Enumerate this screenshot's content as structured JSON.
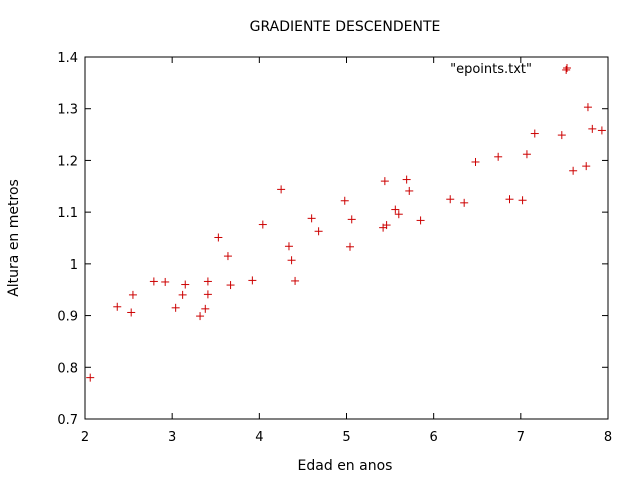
{
  "chart_data": {
    "type": "scatter",
    "title": "GRADIENTE DESCENDENTE",
    "xlabel": "Edad en anos",
    "ylabel": "Altura en metros",
    "xlim": [
      2,
      8
    ],
    "ylim": [
      0.7,
      1.4
    ],
    "xticks": [
      "2",
      "3",
      "4",
      "5",
      "6",
      "7",
      "8"
    ],
    "yticks": [
      "0.7",
      "0.8",
      "0.9",
      "1",
      "1.1",
      "1.2",
      "1.3",
      "1.4"
    ],
    "grid": false,
    "legend_position": "top-right",
    "series": [
      {
        "name": "\"epoints.txt\"",
        "color": "#cc0000",
        "marker": "plus",
        "points": [
          [
            2.06,
            0.78
          ],
          [
            2.37,
            0.917
          ],
          [
            2.53,
            0.906
          ],
          [
            2.55,
            0.94
          ],
          [
            2.79,
            0.966
          ],
          [
            2.92,
            0.965
          ],
          [
            3.04,
            0.915
          ],
          [
            3.12,
            0.94
          ],
          [
            3.15,
            0.96
          ],
          [
            3.32,
            0.899
          ],
          [
            3.38,
            0.913
          ],
          [
            3.41,
            0.941
          ],
          [
            3.41,
            0.966
          ],
          [
            3.53,
            1.051
          ],
          [
            3.64,
            1.015
          ],
          [
            3.67,
            0.959
          ],
          [
            3.92,
            0.968
          ],
          [
            4.04,
            1.076
          ],
          [
            4.25,
            1.144
          ],
          [
            4.34,
            1.034
          ],
          [
            4.37,
            1.007
          ],
          [
            4.41,
            0.967
          ],
          [
            4.6,
            1.088
          ],
          [
            4.68,
            1.063
          ],
          [
            4.98,
            1.122
          ],
          [
            5.04,
            1.033
          ],
          [
            5.06,
            1.086
          ],
          [
            5.42,
            1.07
          ],
          [
            5.44,
            1.16
          ],
          [
            5.46,
            1.075
          ],
          [
            5.56,
            1.105
          ],
          [
            5.6,
            1.096
          ],
          [
            5.69,
            1.163
          ],
          [
            5.72,
            1.141
          ],
          [
            5.85,
            1.084
          ],
          [
            6.19,
            1.125
          ],
          [
            6.35,
            1.118
          ],
          [
            6.48,
            1.197
          ],
          [
            6.74,
            1.207
          ],
          [
            6.87,
            1.125
          ],
          [
            7.02,
            1.123
          ],
          [
            7.07,
            1.212
          ],
          [
            7.16,
            1.252
          ],
          [
            7.47,
            1.249
          ],
          [
            7.52,
            1.375
          ],
          [
            7.6,
            1.18
          ],
          [
            7.75,
            1.189
          ],
          [
            7.77,
            1.303
          ],
          [
            7.82,
            1.261
          ],
          [
            7.93,
            1.258
          ]
        ]
      }
    ]
  }
}
